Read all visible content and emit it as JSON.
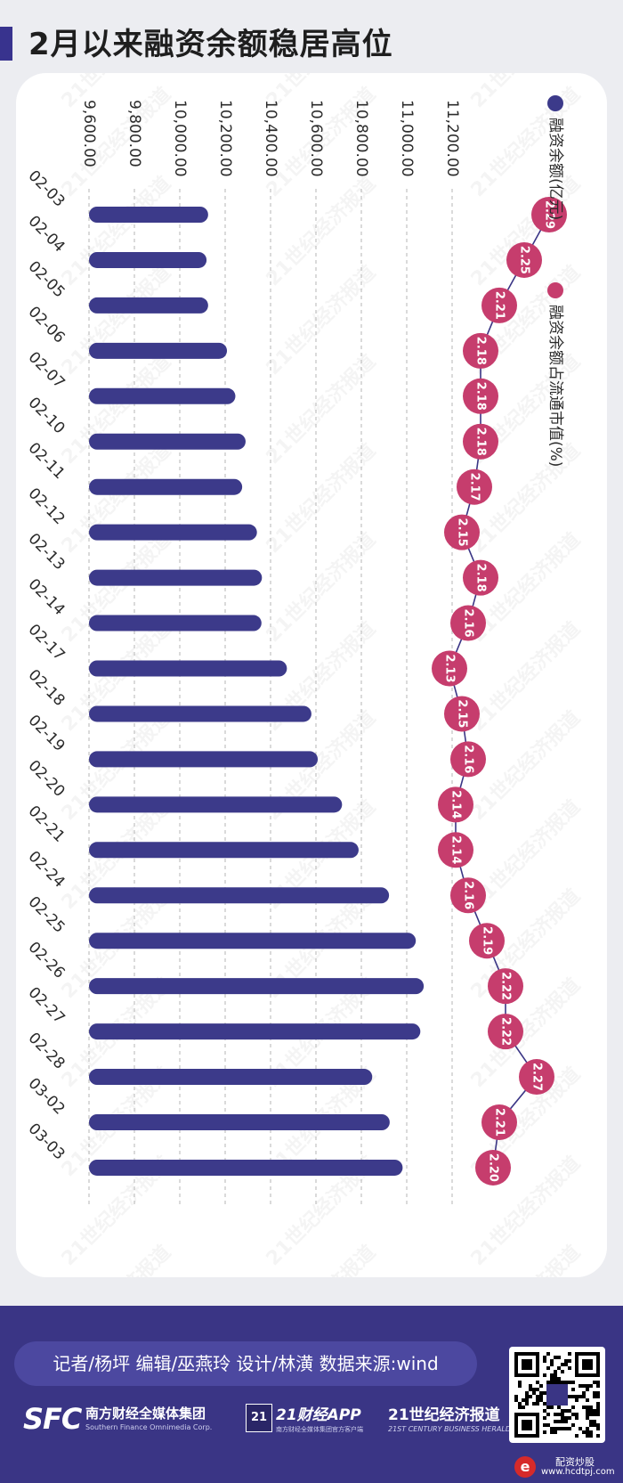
{
  "title": "2月以来融资余额稳居高位",
  "chart_data": {
    "type": "bar",
    "orientation": "horizontal",
    "categories": [
      "02-03",
      "02-04",
      "02-05",
      "02-06",
      "02-07",
      "02-10",
      "02-11",
      "02-12",
      "02-13",
      "02-14",
      "02-17",
      "02-18",
      "02-19",
      "02-20",
      "02-21",
      "02-24",
      "02-25",
      "02-26",
      "02-27",
      "02-28",
      "03-02",
      "03-03"
    ],
    "x_ticks": [
      "9,600.00",
      "9,800.00",
      "10,000.00",
      "10,200.00",
      "10,400.00",
      "10,600.00",
      "10,800.00",
      "11,000.00",
      "11,200.00"
    ],
    "xlim": [
      9600,
      11200
    ],
    "series": [
      {
        "name": "融资余额(亿元)",
        "type": "bar",
        "color": "#3c3a8a",
        "values": [
          10125,
          10118,
          10125,
          10208,
          10245,
          10290,
          10275,
          10340,
          10362,
          10360,
          10472,
          10580,
          10608,
          10715,
          10788,
          10922,
          11040,
          11075,
          11060,
          10848,
          10925,
          10982
        ]
      },
      {
        "name": "融资余额占流通市值(%)",
        "type": "line",
        "color": "#c63d6d",
        "values": [
          2.29,
          2.25,
          2.21,
          2.18,
          2.18,
          2.18,
          2.17,
          2.15,
          2.18,
          2.16,
          2.13,
          2.15,
          2.16,
          2.14,
          2.14,
          2.16,
          2.19,
          2.22,
          2.22,
          2.27,
          2.21,
          2.2
        ],
        "labels": [
          "2.29",
          "2.25",
          "2.21",
          "2.18",
          "2.18",
          "2.18",
          "2.17",
          "2.15",
          "2.18",
          "2.16",
          "2.13",
          "2.15",
          "2.16",
          "2.14",
          "2.14",
          "2.16",
          "2.19",
          "2.22",
          "2.22",
          "2.27",
          "2.21",
          "2.20"
        ]
      }
    ],
    "grid": true,
    "legend_position": "top-right"
  },
  "watermark_text": "21世纪经济报道",
  "footer": {
    "credits": "记者/杨坪  编辑/巫燕玲  设计/林潢  数据来源:wind",
    "sfc_logo": "SFC",
    "sfc_name_cn": "南方财经全媒体集团",
    "sfc_name_en": "Southern Finance Omnimedia Corp.",
    "app_badge": "21",
    "app_name": "21财经APP",
    "app_sub": "南方财经全媒体集团官方客户端",
    "herald_cn": "21世纪经济报道",
    "herald_en": "21ST CENTURY BUSINESS HERALD",
    "site_name": "配资炒股",
    "site_url": "www.hcdtpj.com",
    "site_icon": "e"
  }
}
